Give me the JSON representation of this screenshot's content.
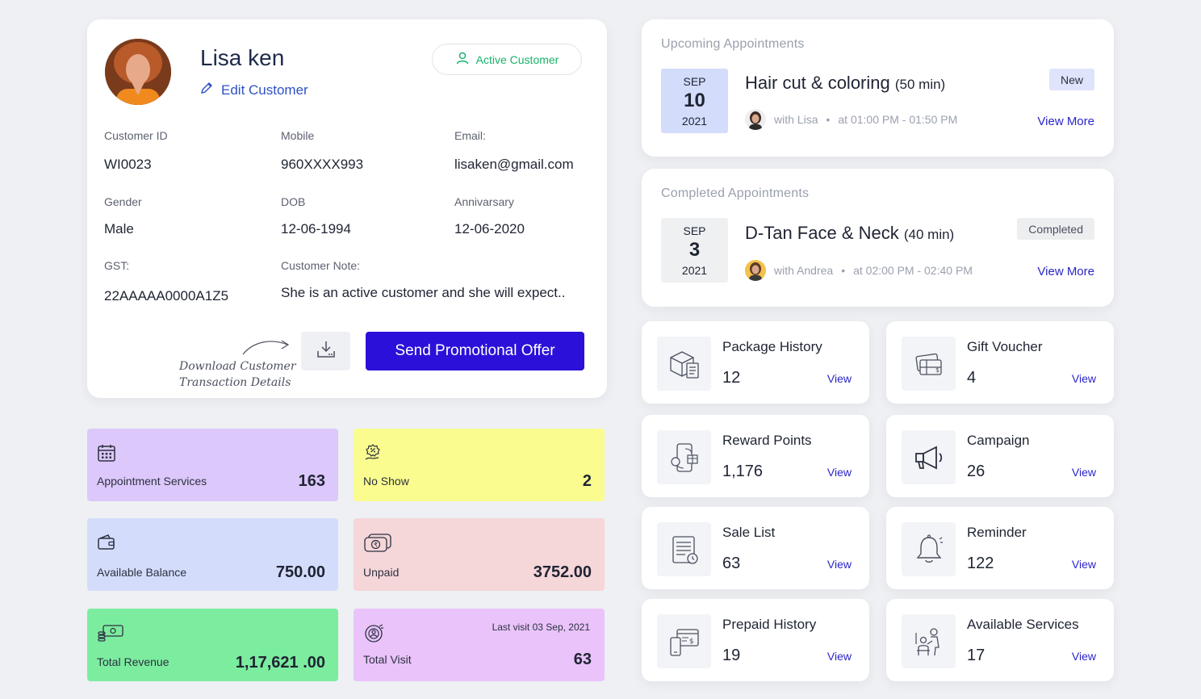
{
  "profile": {
    "name": "Lisa ken",
    "edit_label": "Edit Customer",
    "status_label": "Active Customer",
    "fields": {
      "customer_id": {
        "label": "Customer ID",
        "value": "WI0023"
      },
      "mobile": {
        "label": "Mobile",
        "value": "960XXXX993"
      },
      "email": {
        "label": "Email:",
        "value": "lisaken@gmail.com"
      },
      "gender": {
        "label": "Gender",
        "value": "Male"
      },
      "dob": {
        "label": "DOB",
        "value": "12-06-1994"
      },
      "anniversary": {
        "label": "Annivarsary",
        "value": "12-06-2020"
      },
      "gst": {
        "label": "GST:",
        "value": "22AAAAA0000A1Z5"
      },
      "note": {
        "label": "Customer Note:",
        "value": "She is an active customer and she will expect.."
      }
    },
    "download_hint_line1": "Download Customer",
    "download_hint_line2": "Transaction Details",
    "promo_button": "Send Promotional Offer"
  },
  "stats": {
    "appointment_services": {
      "label": "Appointment Services",
      "value": "163",
      "color": "#dcc8fb",
      "icon": "calendar-icon"
    },
    "no_show": {
      "label": "No Show",
      "value": "2",
      "color": "#fafc8f",
      "icon": "discount-hand-icon"
    },
    "available_balance": {
      "label": "Available Balance",
      "value": "750.00",
      "color": "#d4dcfb",
      "icon": "wallet-icon"
    },
    "unpaid": {
      "label": "Unpaid",
      "value": "3752.00",
      "color": "#f5d6d9",
      "icon": "rupee-notes-icon"
    },
    "total_revenue": {
      "label": "Total Revenue",
      "value": "1,17,621 .00",
      "color": "#7cec9f",
      "icon": "cash-coins-icon"
    },
    "total_visit": {
      "label": "Total Visit",
      "value": "63",
      "note": "Last visit 03 Sep, 2021",
      "color": "#eac3fa",
      "icon": "visit-target-icon"
    }
  },
  "upcoming": {
    "title": "Upcoming Appointments",
    "month": "SEP",
    "day": "10",
    "year": "2021",
    "service": "Hair cut & coloring",
    "duration": "(50 min)",
    "badge": "New",
    "with_prefix": "with",
    "stylist": "Lisa",
    "time": "at 01:00 PM - 01:50 PM",
    "view_more": "View More",
    "date_bg": "#d4dcfb",
    "badge_bg": "#dfe3fb"
  },
  "completed": {
    "title": "Completed Appointments",
    "month": "SEP",
    "day": "3",
    "year": "2021",
    "service": "D-Tan Face & Neck",
    "duration": "(40 min)",
    "badge": "Completed",
    "with_prefix": "with",
    "stylist": "Andrea",
    "time": "at 02:00 PM - 02:40 PM",
    "view_more": "View More",
    "date_bg": "#eef0f2",
    "badge_bg": "#eceef0"
  },
  "features": {
    "package_history": {
      "label": "Package History",
      "count": "12",
      "view": "View",
      "icon": "package-icon"
    },
    "gift_voucher": {
      "label": "Gift Voucher",
      "count": "4",
      "view": "View",
      "icon": "gift-voucher-icon"
    },
    "reward_points": {
      "label": "Reward Points",
      "count": "1,176",
      "view": "View",
      "icon": "reward-icon"
    },
    "campaign": {
      "label": "Campaign",
      "count": "26",
      "view": "View",
      "icon": "megaphone-icon"
    },
    "sale_list": {
      "label": "Sale List",
      "count": "63",
      "view": "View",
      "icon": "sale-list-icon"
    },
    "reminder": {
      "label": "Reminder",
      "count": "122",
      "view": "View",
      "icon": "bell-icon"
    },
    "prepaid_history": {
      "label": "Prepaid History",
      "count": "19",
      "view": "View",
      "icon": "prepaid-icon"
    },
    "available_services": {
      "label": "Available Services",
      "count": "17",
      "view": "View",
      "icon": "salon-service-icon"
    }
  }
}
